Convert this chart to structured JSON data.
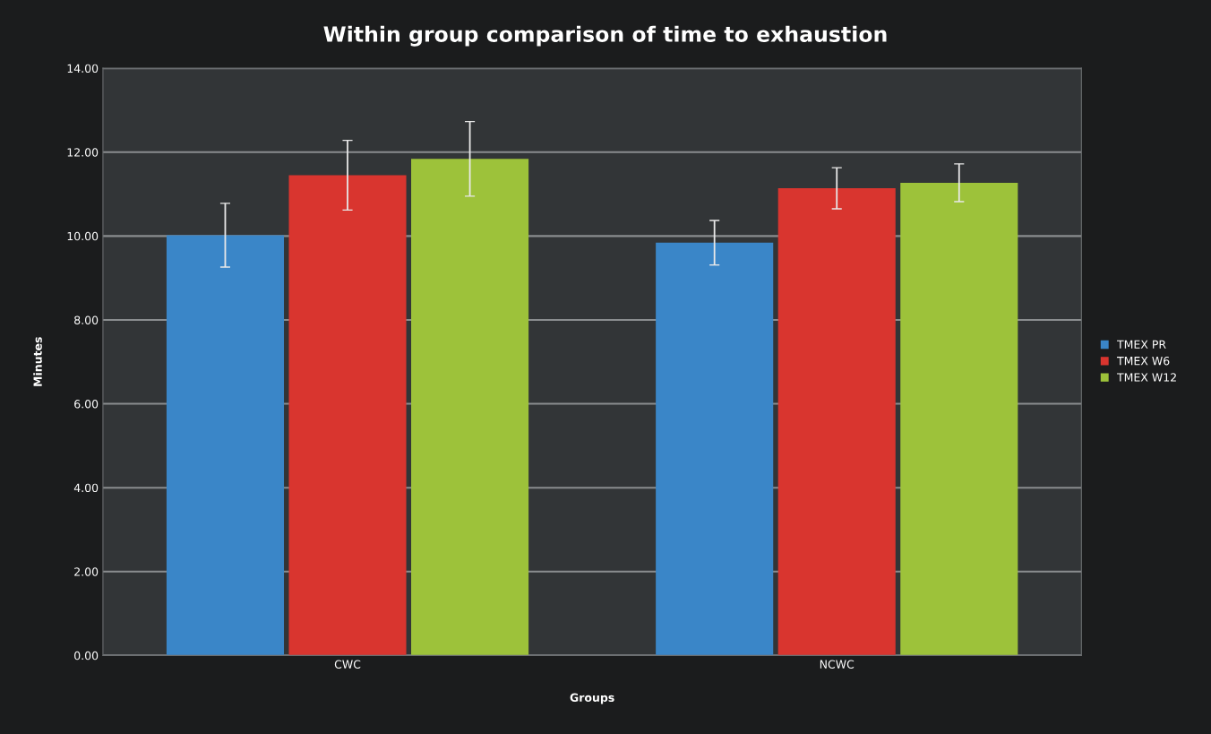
{
  "chart_data": {
    "type": "bar",
    "title": "Within group comparison of time to exhaustion",
    "xlabel": "Groups",
    "ylabel": "Minutes",
    "categories": [
      "CWC",
      "NCWC"
    ],
    "series": [
      {
        "name": "TMEX PR",
        "color": "#3a86c8",
        "values": [
          10.02,
          9.84
        ],
        "errors": [
          0.76,
          0.53
        ]
      },
      {
        "name": "TMEX W6",
        "color": "#d9352f",
        "values": [
          11.45,
          11.14
        ],
        "errors": [
          0.83,
          0.49
        ]
      },
      {
        "name": "TMEX W12",
        "color": "#9dc23a",
        "values": [
          11.84,
          11.27
        ],
        "errors": [
          0.89,
          0.45
        ]
      }
    ],
    "ylim": [
      0,
      14
    ],
    "yticks": [
      {
        "value": 0,
        "label": "0.00"
      },
      {
        "value": 2,
        "label": "2.00"
      },
      {
        "value": 4,
        "label": "4.00"
      },
      {
        "value": 6,
        "label": "6.00"
      },
      {
        "value": 8,
        "label": "8.00"
      },
      {
        "value": 10,
        "label": "10.00"
      },
      {
        "value": 12,
        "label": "12.00"
      },
      {
        "value": 14,
        "label": "14.00"
      }
    ],
    "grid": "y",
    "legend": "right"
  }
}
